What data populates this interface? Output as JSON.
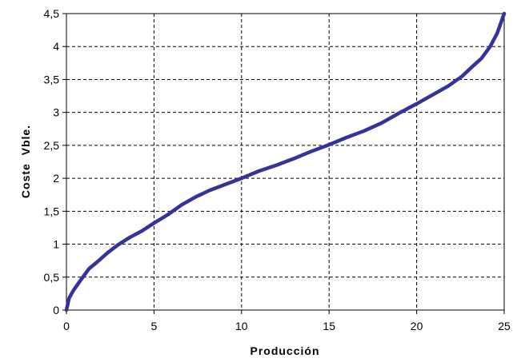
{
  "chart_data": {
    "type": "line",
    "title": "",
    "xlabel": "Producción",
    "ylabel": "Coste  Vble.",
    "xlim": [
      0,
      25
    ],
    "ylim": [
      0,
      4.5
    ],
    "x_ticks": [
      {
        "value": 0,
        "label": "0"
      },
      {
        "value": 5,
        "label": "5"
      },
      {
        "value": 10,
        "label": "10"
      },
      {
        "value": 15,
        "label": "15"
      },
      {
        "value": 20,
        "label": "20"
      },
      {
        "value": 25,
        "label": "25"
      }
    ],
    "y_ticks": [
      {
        "value": 0,
        "label": "0"
      },
      {
        "value": 0.5,
        "label": "0,5"
      },
      {
        "value": 1,
        "label": "1"
      },
      {
        "value": 1.5,
        "label": "1,5"
      },
      {
        "value": 2,
        "label": "2"
      },
      {
        "value": 2.5,
        "label": "2,5"
      },
      {
        "value": 3,
        "label": "3"
      },
      {
        "value": 3.5,
        "label": "3,5"
      },
      {
        "value": 4,
        "label": "4"
      },
      {
        "value": 4.5,
        "label": "4,5"
      }
    ],
    "grid": true,
    "grid_style": "dashed",
    "legend": "none",
    "line_color": "#333399",
    "series": [
      {
        "x": [
          0,
          0.15,
          0.4,
          0.8,
          1.3,
          1.8,
          2.4,
          3,
          3.6,
          4.3,
          5,
          5.8,
          6.6,
          7.4,
          8.2,
          9,
          10,
          11,
          12,
          13,
          14,
          15,
          16,
          17,
          18,
          19,
          20,
          21,
          21.8,
          22.6,
          23.2,
          23.7,
          24.2,
          24.6,
          25
        ],
        "y": [
          0,
          0.18,
          0.3,
          0.45,
          0.63,
          0.74,
          0.88,
          1.0,
          1.1,
          1.2,
          1.32,
          1.45,
          1.6,
          1.72,
          1.82,
          1.9,
          2.0,
          2.11,
          2.2,
          2.3,
          2.41,
          2.51,
          2.62,
          2.72,
          2.84,
          2.99,
          3.13,
          3.28,
          3.4,
          3.55,
          3.7,
          3.82,
          4.0,
          4.2,
          4.5
        ]
      }
    ]
  }
}
